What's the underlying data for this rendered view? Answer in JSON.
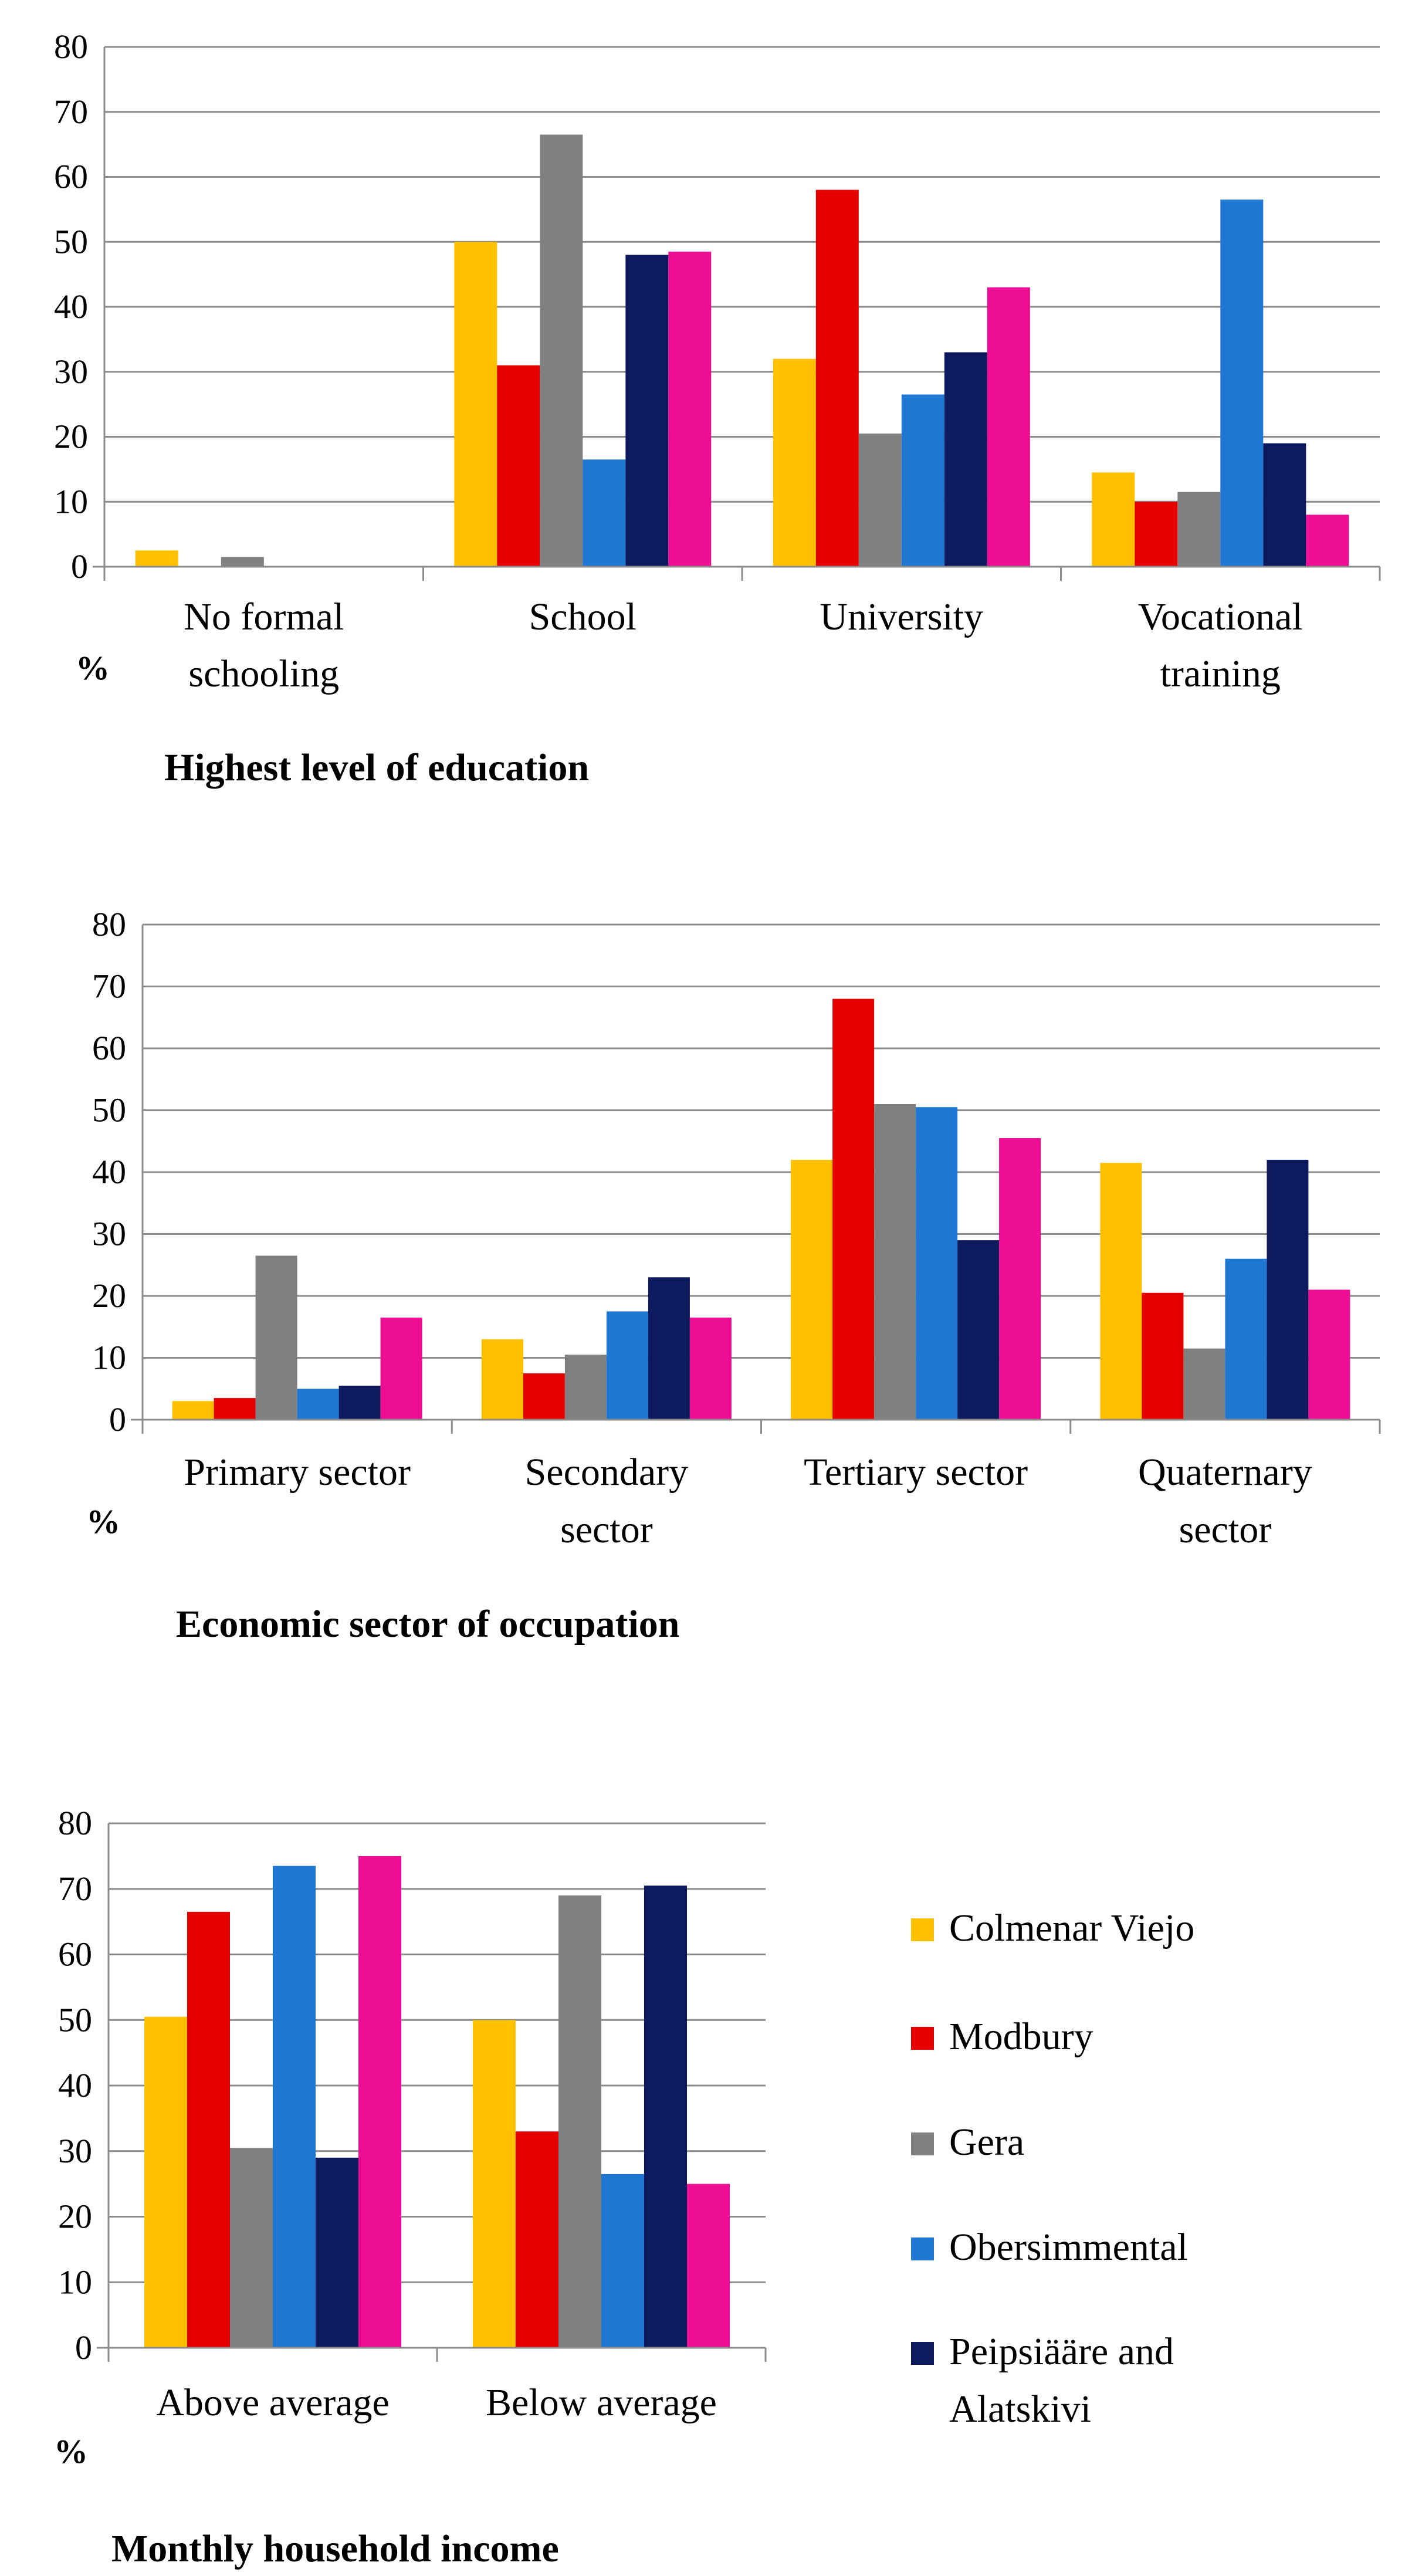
{
  "chart_data": [
    {
      "type": "bar",
      "title": "Highest level of education",
      "ylabel": "%",
      "ylim": [
        0,
        80
      ],
      "yticks": [
        "0",
        "10",
        "20",
        "30",
        "40",
        "50",
        "60",
        "70",
        "80"
      ],
      "categories": [
        [
          "No formal",
          "schooling"
        ],
        [
          "School"
        ],
        [
          "University"
        ],
        [
          "Vocational",
          "training"
        ]
      ],
      "series": [
        {
          "name": "Colmenar Viejo",
          "values": [
            2.5,
            50,
            32,
            14.5
          ]
        },
        {
          "name": "Modbury",
          "values": [
            0,
            31,
            58,
            10
          ]
        },
        {
          "name": "Gera",
          "values": [
            1.5,
            66.5,
            20.5,
            11.5
          ]
        },
        {
          "name": "Obersimmental",
          "values": [
            0,
            16.5,
            26.5,
            56.5
          ]
        },
        {
          "name": "Peipsiääre and Alatskivi",
          "values": [
            0,
            48,
            33,
            19
          ]
        },
        {
          "name": "",
          "values": [
            0,
            48.5,
            43,
            8
          ]
        }
      ]
    },
    {
      "type": "bar",
      "title": "Economic sector of occupation",
      "ylabel": "%",
      "ylim": [
        0,
        80
      ],
      "yticks": [
        "0",
        "10",
        "20",
        "30",
        "40",
        "50",
        "60",
        "70",
        "80"
      ],
      "categories": [
        [
          "Primary sector"
        ],
        [
          "Secondary",
          "sector"
        ],
        [
          "Tertiary sector"
        ],
        [
          "Quaternary",
          "sector"
        ]
      ],
      "series": [
        {
          "name": "Colmenar Viejo",
          "values": [
            3,
            13,
            42,
            41.5
          ]
        },
        {
          "name": "Modbury",
          "values": [
            3.5,
            7.5,
            68,
            20.5
          ]
        },
        {
          "name": "Gera",
          "values": [
            26.5,
            10.5,
            51,
            11.5
          ]
        },
        {
          "name": "Obersimmental",
          "values": [
            5,
            17.5,
            50.5,
            26
          ]
        },
        {
          "name": "Peipsiääre and Alatskivi",
          "values": [
            5.5,
            23,
            29,
            42
          ]
        },
        {
          "name": "",
          "values": [
            16.5,
            16.5,
            45.5,
            21
          ]
        }
      ]
    },
    {
      "type": "bar",
      "title": "Monthly household income",
      "ylabel": "%",
      "ylim": [
        0,
        80
      ],
      "yticks": [
        "0",
        "10",
        "20",
        "30",
        "40",
        "50",
        "60",
        "70",
        "80"
      ],
      "categories": [
        [
          "Above average"
        ],
        [
          "Below average"
        ]
      ],
      "series": [
        {
          "name": "Colmenar Viejo",
          "values": [
            50.5,
            50
          ]
        },
        {
          "name": "Modbury",
          "values": [
            66.5,
            33
          ]
        },
        {
          "name": "Gera",
          "values": [
            30.5,
            69
          ]
        },
        {
          "name": "Obersimmental",
          "values": [
            73.5,
            26.5
          ]
        },
        {
          "name": "Peipsiääre and Alatskivi",
          "values": [
            29,
            70.5
          ]
        },
        {
          "name": "",
          "values": [
            75,
            25
          ]
        }
      ]
    }
  ],
  "legend": {
    "placement": "right of bottom chart",
    "items": [
      {
        "lines": [
          "Colmenar Viejo"
        ],
        "color": "#ffc000"
      },
      {
        "lines": [
          "Modbury"
        ],
        "color": "#e60000"
      },
      {
        "lines": [
          "Gera"
        ],
        "color": "#808080"
      },
      {
        "lines": [
          "Obersimmental"
        ],
        "color": "#1f77d4"
      },
      {
        "lines": [
          "Peipsiääre and",
          "Alatskivi"
        ],
        "color": "#0d1b5e"
      }
    ]
  },
  "colors": [
    "#ffc000",
    "#e60000",
    "#808080",
    "#1f77d4",
    "#0d1b5e",
    "#ec0d93"
  ],
  "grid": true
}
